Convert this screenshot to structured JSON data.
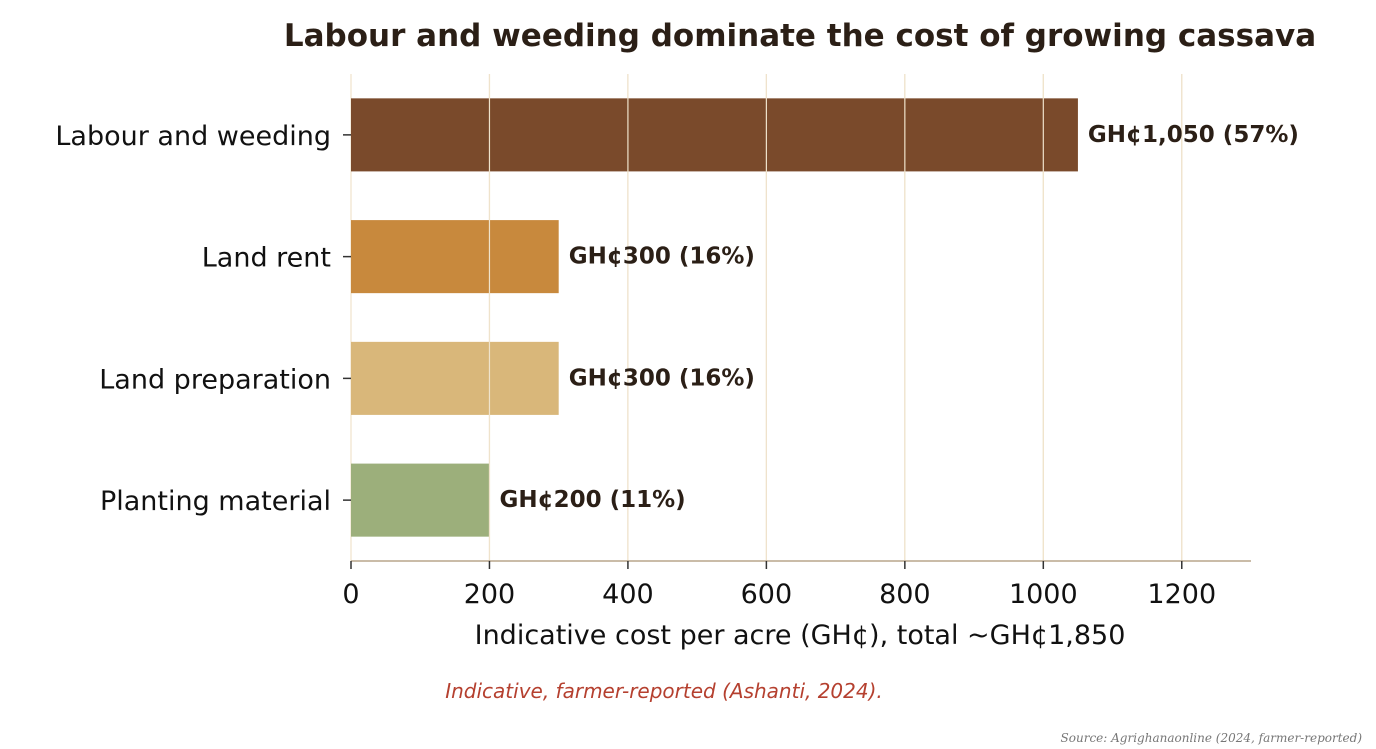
{
  "chart_data": {
    "type": "bar",
    "orientation": "horizontal",
    "title": "Labour and weeding dominate the cost of growing cassava",
    "xlabel": "Indicative cost per acre (GH¢), total ~GH¢1,850",
    "ylabel": "",
    "xlim": [
      0,
      1300
    ],
    "xticks": [
      0,
      200,
      400,
      600,
      800,
      1000,
      1200
    ],
    "grid": "vertical",
    "categories": [
      "Labour and weeding",
      "Land rent",
      "Land preparation",
      "Planting material"
    ],
    "values": [
      1050,
      300,
      300,
      200
    ],
    "data_labels": [
      "GH¢1,050  (57%)",
      "GH¢300  (16%)",
      "GH¢300  (16%)",
      "GH¢200  (11%)"
    ],
    "colors": [
      "#7a4a2b",
      "#c8893d",
      "#d9b77a",
      "#9caf7b"
    ],
    "annotation": "Indicative, farmer-reported (Ashanti, 2024).",
    "source": "Source: Agrighanaonline (2024, farmer-reported)"
  },
  "style": {
    "grid_color": "#efe3cc",
    "axis_color": "#b9a58c",
    "tick_color": "#333333"
  }
}
